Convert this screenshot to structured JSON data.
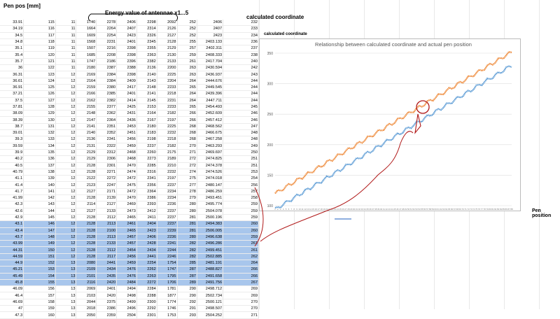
{
  "sheet": {
    "headers": {
      "pen_pos": "Pen pos [mm]",
      "energy": "Energy value of antennae x1...5",
      "calc": "calculated coordinate",
      "pen_position_side": "Pen position"
    },
    "selected_rows": [
      31,
      40
    ],
    "rows": [
      [
        "33.91",
        "115",
        "11",
        "1740",
        "2278",
        "2406",
        "2298",
        "2092",
        "252",
        "2406",
        "232"
      ],
      [
        "34.19",
        "116",
        "11",
        "1664",
        "2264",
        "2407",
        "2314",
        "2126",
        "252",
        "2407",
        "233"
      ],
      [
        "34.5",
        "117",
        "11",
        "1609",
        "2254",
        "2423",
        "2326",
        "2127",
        "252",
        "2423",
        "234"
      ],
      [
        "34.8",
        "118",
        "11",
        "1568",
        "2231",
        "2401",
        "2345",
        "2128",
        "255",
        "2403.133",
        "236"
      ],
      [
        "35.1",
        "119",
        "11",
        "1507",
        "2216",
        "2398",
        "2355",
        "2129",
        "257",
        "2402.311",
        "237"
      ],
      [
        "35.4",
        "120",
        "11",
        "1685",
        "2208",
        "2398",
        "2363",
        "2130",
        "259",
        "2408.333",
        "238"
      ],
      [
        "35.7",
        "121",
        "11",
        "1747",
        "2186",
        "2396",
        "2382",
        "2133",
        "261",
        "2417.704",
        "240"
      ],
      [
        "36",
        "122",
        "11",
        "2180",
        "2387",
        "2388",
        "2136",
        "2200",
        "263",
        "2430.594",
        "242"
      ],
      [
        "36.31",
        "123",
        "12",
        "2169",
        "2384",
        "2398",
        "2140",
        "2225",
        "263",
        "2436.937",
        "243"
      ],
      [
        "36.61",
        "124",
        "12",
        "2164",
        "2384",
        "2409",
        "2143",
        "2204",
        "264",
        "2444.676",
        "244"
      ],
      [
        "36.91",
        "125",
        "12",
        "2159",
        "2380",
        "2417",
        "2148",
        "2233",
        "265",
        "2449.545",
        "244"
      ],
      [
        "37.21",
        "126",
        "12",
        "2166",
        "2385",
        "2401",
        "2141",
        "2218",
        "264",
        "2439.396",
        "244"
      ],
      [
        "37.5",
        "127",
        "12",
        "2162",
        "2382",
        "2414",
        "2145",
        "2231",
        "264",
        "2447.711",
        "244"
      ],
      [
        "37.81",
        "128",
        "12",
        "2155",
        "2377",
        "2425",
        "2153",
        "2233",
        "265",
        "2454.493",
        "245"
      ],
      [
        "38.09",
        "129",
        "12",
        "2148",
        "2362",
        "2431",
        "2164",
        "2182",
        "266",
        "2452.609",
        "246"
      ],
      [
        "38.39",
        "130",
        "12",
        "2147",
        "2364",
        "2436",
        "2167",
        "2197",
        "266",
        "2457.412",
        "246"
      ],
      [
        "38.7",
        "131",
        "12",
        "2141",
        "2351",
        "2453",
        "2180",
        "2225",
        "268",
        "2468.562",
        "247"
      ],
      [
        "39.01",
        "132",
        "12",
        "2140",
        "2352",
        "2451",
        "2183",
        "2232",
        "268",
        "2466.675",
        "248"
      ],
      [
        "39.3",
        "133",
        "12",
        "2136",
        "2341",
        "2456",
        "2198",
        "2218",
        "268",
        "2467.258",
        "248"
      ],
      [
        "39.59",
        "134",
        "12",
        "2131",
        "2322",
        "2459",
        "2237",
        "2182",
        "270",
        "2463.293",
        "249"
      ],
      [
        "39.9",
        "135",
        "12",
        "2129",
        "2312",
        "2468",
        "2260",
        "2175",
        "271",
        "2469.697",
        "250"
      ],
      [
        "40.2",
        "136",
        "12",
        "2129",
        "2306",
        "2468",
        "2273",
        "2189",
        "272",
        "2474.825",
        "251"
      ],
      [
        "40.5",
        "137",
        "12",
        "2128",
        "2301",
        "2470",
        "2285",
        "2210",
        "272",
        "2474.378",
        "251"
      ],
      [
        "40.79",
        "138",
        "12",
        "2128",
        "2271",
        "2474",
        "2316",
        "2232",
        "274",
        "2474.526",
        "253"
      ],
      [
        "41.1",
        "139",
        "12",
        "2122",
        "2272",
        "2472",
        "2341",
        "2197",
        "275",
        "2474.018",
        "254"
      ],
      [
        "41.4",
        "140",
        "12",
        "2123",
        "2247",
        "2475",
        "2356",
        "2237",
        "277",
        "2480.147",
        "256"
      ],
      [
        "41.7",
        "141",
        "12",
        "2127",
        "2171",
        "2472",
        "2364",
        "2234",
        "278",
        "2486.259",
        "257"
      ],
      [
        "41.99",
        "142",
        "12",
        "2128",
        "2139",
        "2470",
        "2386",
        "2234",
        "279",
        "2493.451",
        "258"
      ],
      [
        "42.3",
        "143",
        "12",
        "2114",
        "2127",
        "2469",
        "2393",
        "2236",
        "280",
        "2495.774",
        "259"
      ],
      [
        "42.6",
        "144",
        "12",
        "2127",
        "2133",
        "2473",
        "2412",
        "2237",
        "280",
        "2504.078",
        "259"
      ],
      [
        "42.9",
        "145",
        "12",
        "2128",
        "2112",
        "2465",
        "2411",
        "2237",
        "281",
        "2500.196",
        "259"
      ],
      [
        "43.1",
        "146",
        "12",
        "2128",
        "2113",
        "2461",
        "2404",
        "2237",
        "281",
        "2494.383",
        "260"
      ],
      [
        "43.4",
        "147",
        "12",
        "2128",
        "2100",
        "2465",
        "2423",
        "2239",
        "281",
        "2506.005",
        "260"
      ],
      [
        "43.7",
        "148",
        "12",
        "2128",
        "2113",
        "2457",
        "2406",
        "2236",
        "280",
        "2496.638",
        "259"
      ],
      [
        "43.99",
        "149",
        "12",
        "2128",
        "2133",
        "2457",
        "2428",
        "2241",
        "282",
        "2496.286",
        "261"
      ],
      [
        "44.31",
        "150",
        "12",
        "2128",
        "2112",
        "2454",
        "2434",
        "2244",
        "282",
        "2499.451",
        "261"
      ],
      [
        "44.59",
        "151",
        "12",
        "2128",
        "2117",
        "2456",
        "2441",
        "2246",
        "282",
        "2502.885",
        "262"
      ],
      [
        "44.9",
        "152",
        "13",
        "2080",
        "2441",
        "2459",
        "2254",
        "1754",
        "285",
        "2481.191",
        "264"
      ],
      [
        "45.21",
        "153",
        "13",
        "2109",
        "2434",
        "2476",
        "2262",
        "1747",
        "287",
        "2488.827",
        "266"
      ],
      [
        "45.49",
        "154",
        "13",
        "2101",
        "2435",
        "2476",
        "2263",
        "1795",
        "287",
        "2491.658",
        "266"
      ],
      [
        "45.8",
        "155",
        "13",
        "2116",
        "2420",
        "2484",
        "2272",
        "1706",
        "289",
        "2491.756",
        "267"
      ],
      [
        "46.09",
        "156",
        "13",
        "2069",
        "2401",
        "2494",
        "2284",
        "1781",
        "290",
        "2498.712",
        "269"
      ],
      [
        "46.4",
        "157",
        "13",
        "2103",
        "2420",
        "2498",
        "2288",
        "1877",
        "290",
        "2502.734",
        "269"
      ],
      [
        "46.69",
        "158",
        "13",
        "2044",
        "2375",
        "2499",
        "2300",
        "1774",
        "292",
        "2500.121",
        "270"
      ],
      [
        "47",
        "159",
        "13",
        "2018",
        "2386",
        "2496",
        "2292",
        "1746",
        "291",
        "2498.507",
        "270"
      ],
      [
        "47.3",
        "160",
        "13",
        "2050",
        "2359",
        "2504",
        "2301",
        "1753",
        "293",
        "2504.252",
        "271"
      ]
    ]
  },
  "chart_data": {
    "type": "line",
    "inset_label": "calculated coordinate",
    "title": "Relationship between calculated coordinate and actual pen position",
    "ylim": [
      100,
      350
    ],
    "yticks": [
      100,
      150,
      200,
      250,
      300,
      350
    ],
    "x_count": 88,
    "grid": true,
    "series_colors": [
      "#ee8a3a",
      "#5b9bd5"
    ],
    "series": [
      {
        "start": 120,
        "end": 352,
        "noise": 3
      },
      {
        "start": 94,
        "end": 330,
        "noise": 3
      }
    ]
  },
  "annotation_color": "#b01818"
}
